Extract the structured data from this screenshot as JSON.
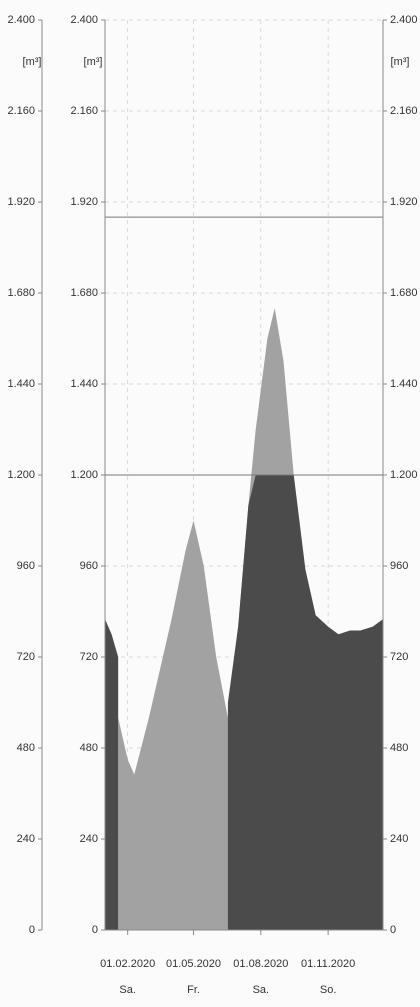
{
  "chart_data": {
    "type": "area",
    "unit": "[m³]",
    "x": [
      "01.01.2020",
      "10.01.2020",
      "19.01.2020",
      "01.02.2020",
      "10.02.2020",
      "01.03.2020",
      "01.04.2020",
      "20.04.2020",
      "01.05.2020",
      "15.05.2020",
      "01.06.2020",
      "17.06.2020",
      "01.07.2020",
      "15.07.2020",
      "25.07.2020",
      "10.08.2020",
      "20.08.2020",
      "01.09.2020",
      "15.09.2020",
      "01.10.2020",
      "15.10.2020",
      "01.11.2020",
      "15.11.2020",
      "01.12.2020",
      "15.12.2020",
      "01.01.2021",
      "15.01.2021"
    ],
    "series": [
      {
        "color": "#a2a2a2",
        "values": [
          null,
          null,
          560,
          450,
          410,
          560,
          820,
          1000,
          1080,
          960,
          720,
          560,
          800,
          1120,
          1320,
          1560,
          1640,
          1500,
          1200,
          null,
          null,
          null,
          null,
          null,
          null,
          null,
          null
        ]
      },
      {
        "color": "#4b4b4b",
        "values": [
          820,
          780,
          720,
          null,
          null,
          null,
          null,
          null,
          null,
          null,
          null,
          600,
          800,
          1120,
          1200,
          1200,
          1200,
          1200,
          1200,
          950,
          830,
          800,
          780,
          790,
          790,
          800,
          820
        ]
      }
    ],
    "xlim": [
      "01.01.2020",
      "15.01.2021"
    ],
    "xticks": [
      "01.02.2020",
      "01.05.2020",
      "01.08.2020",
      "01.11.2020"
    ],
    "xtick_weekdays": [
      "Sa.",
      "Fr.",
      "Sa.",
      "So."
    ],
    "ylim": [
      0,
      2400
    ],
    "yticks": [
      0,
      240,
      480,
      720,
      960,
      {
        "value": 1200,
        "label": "1.200"
      },
      {
        "value": 1440,
        "label": "1.440"
      },
      {
        "value": 1680,
        "label": "1.680"
      },
      {
        "value": 1920,
        "label": "1.920"
      },
      {
        "value": 2160,
        "label": "2.160"
      },
      {
        "value": 2400,
        "label": "2.400"
      }
    ],
    "reference_lines": [
      1200,
      1880
    ],
    "grid": true
  }
}
